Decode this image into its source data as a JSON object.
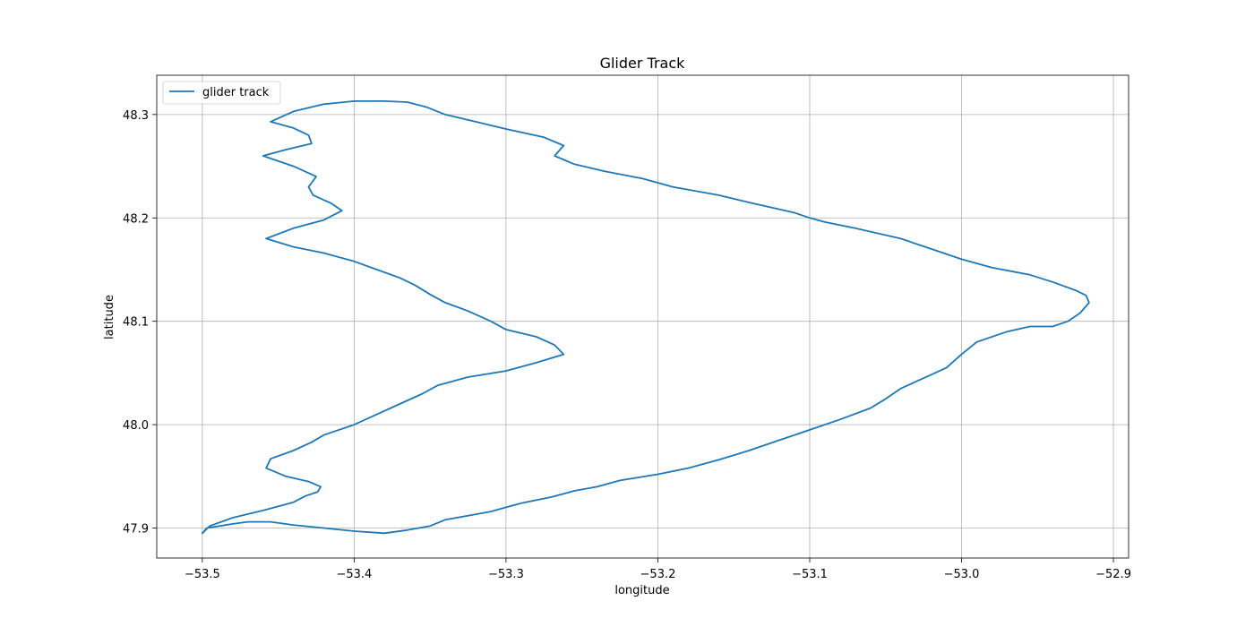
{
  "chart_data": {
    "type": "line",
    "title": "Glider Track",
    "xlabel": "longitude",
    "ylabel": "latitude",
    "xlim": [
      -53.53,
      -52.89
    ],
    "ylim": [
      47.871,
      48.338
    ],
    "xticks": [
      -53.5,
      -53.4,
      -53.3,
      -53.2,
      -53.1,
      -53.0,
      -52.9
    ],
    "xtick_labels": [
      "−53.5",
      "−53.4",
      "−53.3",
      "−53.2",
      "−53.1",
      "−53.0",
      "−52.9"
    ],
    "yticks": [
      47.9,
      48.0,
      48.1,
      48.2,
      48.3
    ],
    "ytick_labels": [
      "47.9",
      "48.0",
      "48.1",
      "48.2",
      "48.3"
    ],
    "grid": true,
    "legend_position": "upper-left",
    "series": [
      {
        "name": "glider track",
        "color": "#1f77b4",
        "x": [
          -53.5,
          -53.497,
          -53.48,
          -53.47,
          -53.455,
          -53.44,
          -53.42,
          -53.4,
          -53.38,
          -53.365,
          -53.35,
          -53.34,
          -53.325,
          -53.31,
          -53.3,
          -53.29,
          -53.27,
          -53.255,
          -53.24,
          -53.225,
          -53.2,
          -53.18,
          -53.16,
          -53.14,
          -53.12,
          -53.1,
          -53.08,
          -53.06,
          -53.05,
          -53.04,
          -53.025,
          -53.01,
          -53.0,
          -52.99,
          -52.97,
          -52.955,
          -52.94,
          -52.93,
          -52.922,
          -52.916,
          -52.918,
          -52.925,
          -52.94,
          -52.955,
          -52.98,
          -53.0,
          -53.02,
          -53.04,
          -53.07,
          -53.09,
          -53.1,
          -53.11,
          -53.125,
          -53.14,
          -53.16,
          -53.19,
          -53.21,
          -53.235,
          -53.255,
          -53.268,
          -53.262,
          -53.275,
          -53.3,
          -53.32,
          -53.34,
          -53.352,
          -53.365,
          -53.38,
          -53.4,
          -53.42,
          -53.44,
          -53.455,
          -53.44,
          -53.43,
          -53.428,
          -53.445,
          -53.46,
          -53.44,
          -53.425,
          -53.43,
          -53.427,
          -53.415,
          -53.408,
          -53.42,
          -53.44,
          -53.458,
          -53.44,
          -53.42,
          -53.4,
          -53.385,
          -53.37,
          -53.36,
          -53.35,
          -53.34,
          -53.325,
          -53.31,
          -53.3,
          -53.28,
          -53.268,
          -53.262,
          -53.28,
          -53.3,
          -53.325,
          -53.345,
          -53.355,
          -53.37,
          -53.385,
          -53.4,
          -53.42,
          -53.428,
          -53.44,
          -53.455,
          -53.458,
          -53.445,
          -53.43,
          -53.422,
          -53.424,
          -53.432,
          -53.44,
          -53.46,
          -53.48,
          -53.495,
          -53.5
        ],
        "y": [
          47.895,
          47.9,
          47.904,
          47.906,
          47.906,
          47.903,
          47.9,
          47.897,
          47.895,
          47.898,
          47.902,
          47.908,
          47.912,
          47.916,
          47.92,
          47.924,
          47.93,
          47.936,
          47.94,
          47.946,
          47.952,
          47.958,
          47.966,
          47.975,
          47.985,
          47.995,
          48.005,
          48.016,
          48.025,
          48.035,
          48.045,
          48.055,
          48.068,
          48.08,
          48.09,
          48.095,
          48.095,
          48.1,
          48.108,
          48.118,
          48.125,
          48.13,
          48.138,
          48.145,
          48.152,
          48.16,
          48.17,
          48.18,
          48.19,
          48.196,
          48.2,
          48.205,
          48.21,
          48.215,
          48.222,
          48.23,
          48.238,
          48.245,
          48.252,
          48.26,
          48.27,
          48.278,
          48.286,
          48.293,
          48.3,
          48.307,
          48.312,
          48.313,
          48.313,
          48.31,
          48.303,
          48.293,
          48.287,
          48.28,
          48.272,
          48.266,
          48.26,
          48.25,
          48.24,
          48.23,
          48.222,
          48.214,
          48.207,
          48.198,
          48.19,
          48.18,
          48.172,
          48.166,
          48.158,
          48.15,
          48.142,
          48.135,
          48.126,
          48.118,
          48.11,
          48.1,
          48.092,
          48.085,
          48.077,
          48.068,
          48.06,
          48.052,
          48.046,
          48.038,
          48.03,
          48.02,
          48.01,
          48.0,
          47.99,
          47.983,
          47.975,
          47.967,
          47.958,
          47.95,
          47.945,
          47.94,
          47.935,
          47.931,
          47.925,
          47.917,
          47.91,
          47.902,
          47.895
        ]
      }
    ]
  }
}
